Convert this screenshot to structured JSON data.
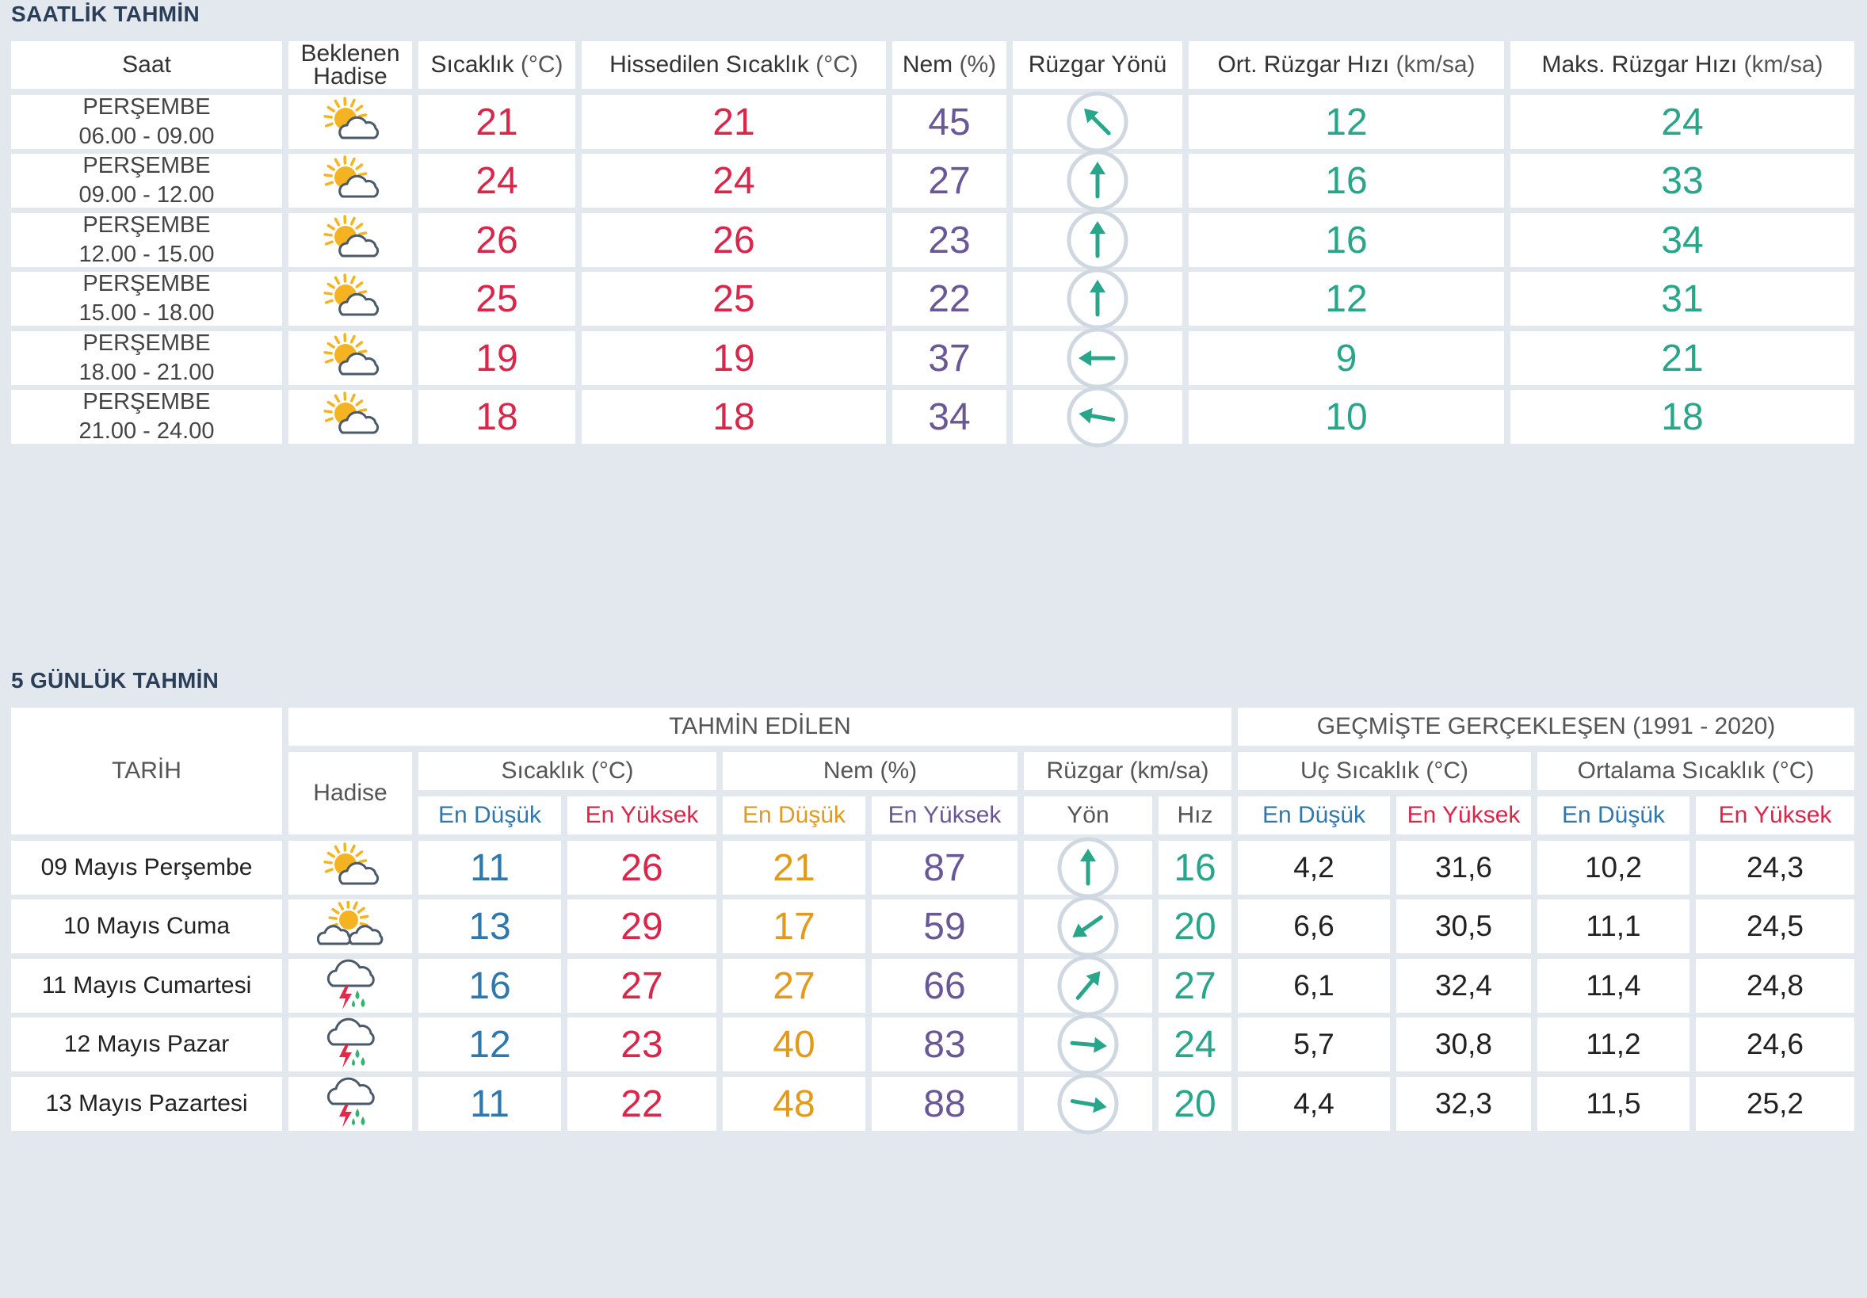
{
  "hourly": {
    "title": "SAATLİK TAHMİN",
    "headers": {
      "saat": "Saat",
      "hadise_1": "Beklenen",
      "hadise_2": "Hadise",
      "sicaklik": "Sıcaklık",
      "sicaklik_unit": "(°C)",
      "hissedilen": "Hissedilen Sıcaklık",
      "hissedilen_unit": "(°C)",
      "nem": "Nem",
      "nem_unit": "(%)",
      "ruzgar_yonu": "Rüzgar Yönü",
      "ort_ruzgar": "Ort. Rüzgar Hızı",
      "ort_ruzgar_unit": "(km/sa)",
      "maks_ruzgar": "Maks. Rüzgar Hızı",
      "maks_ruzgar_unit": "(km/sa)"
    },
    "rows": [
      {
        "day": "PERŞEMBE",
        "time": "06.00 - 09.00",
        "icon": "partly-cloudy-icon",
        "temp": "21",
        "feels": "21",
        "humidity": "45",
        "wind_dir": "northwest",
        "wind_deg": -45,
        "avg_wind": "12",
        "max_wind": "24"
      },
      {
        "day": "PERŞEMBE",
        "time": "09.00 - 12.00",
        "icon": "partly-cloudy-icon",
        "temp": "24",
        "feels": "24",
        "humidity": "27",
        "wind_dir": "north",
        "wind_deg": 0,
        "avg_wind": "16",
        "max_wind": "33"
      },
      {
        "day": "PERŞEMBE",
        "time": "12.00 - 15.00",
        "icon": "partly-cloudy-icon",
        "temp": "26",
        "feels": "26",
        "humidity": "23",
        "wind_dir": "north",
        "wind_deg": 0,
        "avg_wind": "16",
        "max_wind": "34"
      },
      {
        "day": "PERŞEMBE",
        "time": "15.00 - 18.00",
        "icon": "partly-cloudy-icon",
        "temp": "25",
        "feels": "25",
        "humidity": "22",
        "wind_dir": "north",
        "wind_deg": 0,
        "avg_wind": "12",
        "max_wind": "31"
      },
      {
        "day": "PERŞEMBE",
        "time": "18.00 - 21.00",
        "icon": "partly-cloudy-icon",
        "temp": "19",
        "feels": "19",
        "humidity": "37",
        "wind_dir": "west",
        "wind_deg": -90,
        "avg_wind": "9",
        "max_wind": "21"
      },
      {
        "day": "PERŞEMBE",
        "time": "21.00 - 24.00",
        "icon": "partly-cloudy-icon",
        "temp": "18",
        "feels": "18",
        "humidity": "34",
        "wind_dir": "west",
        "wind_deg": -80,
        "avg_wind": "10",
        "max_wind": "18"
      }
    ]
  },
  "daily": {
    "title": "5 GÜNLÜK TAHMİN",
    "headers": {
      "tarih": "TARİH",
      "tahmin_edilen": "TAHMİN EDİLEN",
      "gecmiste": "GEÇMİŞTE GERÇEKLEŞEN (1991 - 2020)",
      "hadise": "Hadise",
      "sicaklik": "Sıcaklık (°C)",
      "nem": "Nem (%)",
      "ruzgar": "Rüzgar (km/sa)",
      "uc_sicaklik": "Uç Sıcaklık (°C)",
      "ortalama_sicaklik": "Ortalama Sıcaklık (°C)",
      "en_dusuk": "En Düşük",
      "en_yuksek": "En Yüksek",
      "yon": "Yön",
      "hiz": "Hız"
    },
    "rows": [
      {
        "date": "09 Mayıs Perşembe",
        "icon": "partly-cloudy-icon",
        "temp_min": "11",
        "temp_max": "26",
        "hum_min": "21",
        "hum_max": "87",
        "wind_dir": "north",
        "wind_deg": 0,
        "wind_speed": "16",
        "ext_min": "4,2",
        "ext_max": "31,6",
        "avg_min": "10,2",
        "avg_max": "24,3"
      },
      {
        "date": "10 Mayıs Cuma",
        "icon": "sun-clouds-icon",
        "temp_min": "13",
        "temp_max": "29",
        "hum_min": "17",
        "hum_max": "59",
        "wind_dir": "southwest",
        "wind_deg": -125,
        "wind_speed": "20",
        "ext_min": "6,6",
        "ext_max": "30,5",
        "avg_min": "11,1",
        "avg_max": "24,5"
      },
      {
        "date": "11 Mayıs Cumartesi",
        "icon": "thunderstorm-rain-icon",
        "temp_min": "16",
        "temp_max": "27",
        "hum_min": "27",
        "hum_max": "66",
        "wind_dir": "northeast",
        "wind_deg": 40,
        "wind_speed": "27",
        "ext_min": "6,1",
        "ext_max": "32,4",
        "avg_min": "11,4",
        "avg_max": "24,8"
      },
      {
        "date": "12 Mayıs Pazar",
        "icon": "thunderstorm-rain-icon",
        "temp_min": "12",
        "temp_max": "23",
        "hum_min": "40",
        "hum_max": "83",
        "wind_dir": "east",
        "wind_deg": 95,
        "wind_speed": "24",
        "ext_min": "5,7",
        "ext_max": "30,8",
        "avg_min": "11,2",
        "avg_max": "24,6"
      },
      {
        "date": "13 Mayıs Pazartesi",
        "icon": "thunderstorm-rain-icon",
        "temp_min": "11",
        "temp_max": "22",
        "hum_min": "48",
        "hum_max": "88",
        "wind_dir": "east",
        "wind_deg": 100,
        "wind_speed": "20",
        "ext_min": "4,4",
        "ext_max": "32,3",
        "avg_min": "11,5",
        "avg_max": "25,2"
      }
    ]
  },
  "colors": {
    "temperature": "#d9264a",
    "humidity": "#6a5796",
    "wind": "#29a68a",
    "low": "#2f78ad",
    "humidity_low": "#e39a1b"
  }
}
